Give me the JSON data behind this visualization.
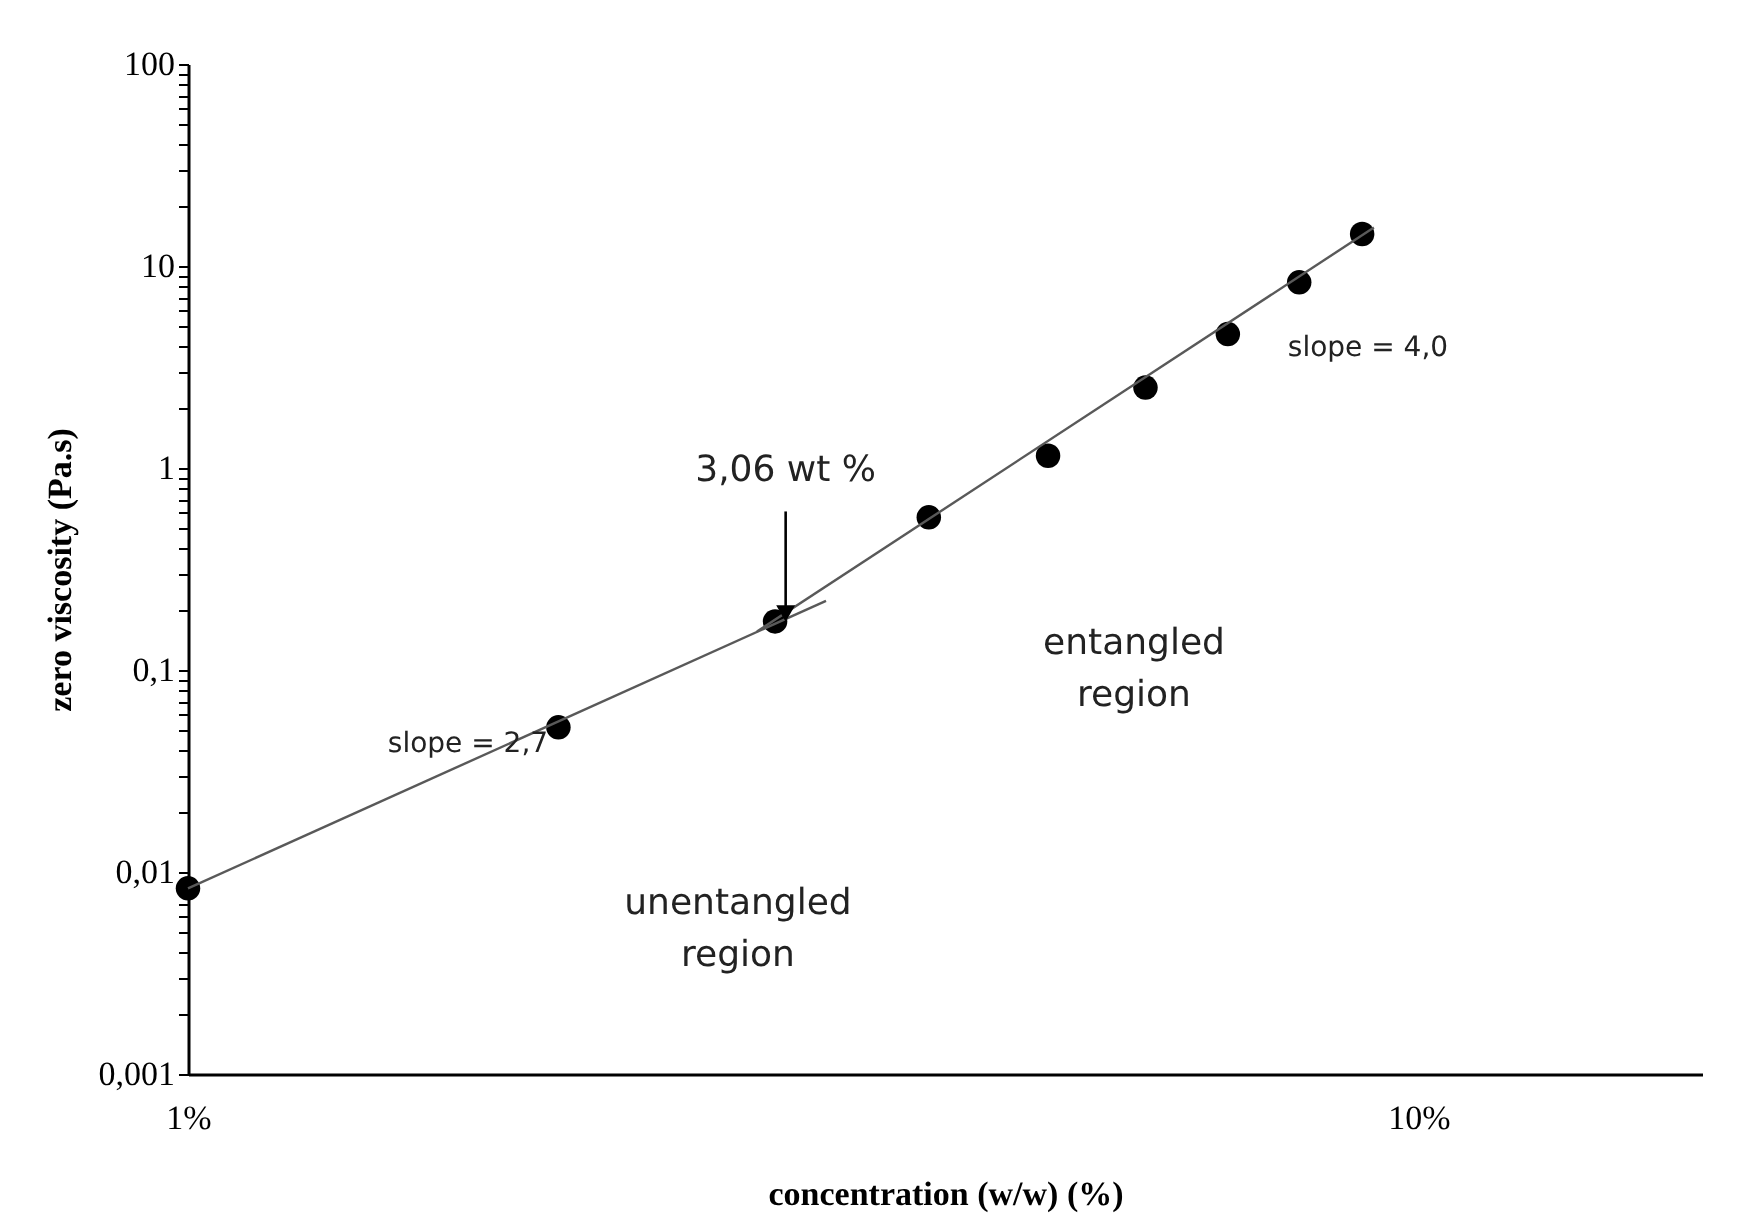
{
  "chart_data": {
    "type": "scatter",
    "xlabel": "concentration (w/w) (%)",
    "ylabel": "zero viscosity (Pa.s)",
    "log": "xy",
    "grid": false,
    "xlim": [
      1,
      17
    ],
    "ylim": [
      0.001,
      100
    ],
    "xticks": [
      {
        "value": 1,
        "label": "1%"
      },
      {
        "value": 10,
        "label": "10%"
      }
    ],
    "yticks": [
      {
        "value": 0.001,
        "label": "0,001"
      },
      {
        "value": 0.002,
        "label": null
      },
      {
        "value": 0.003,
        "label": null
      },
      {
        "value": 0.004,
        "label": null
      },
      {
        "value": 0.005,
        "label": null
      },
      {
        "value": 0.006,
        "label": null
      },
      {
        "value": 0.007,
        "label": null
      },
      {
        "value": 0.008,
        "label": null
      },
      {
        "value": 0.009,
        "label": null
      },
      {
        "value": 0.01,
        "label": "0,01"
      },
      {
        "value": 0.02,
        "label": null
      },
      {
        "value": 0.03,
        "label": null
      },
      {
        "value": 0.04,
        "label": null
      },
      {
        "value": 0.05,
        "label": null
      },
      {
        "value": 0.06,
        "label": null
      },
      {
        "value": 0.07,
        "label": null
      },
      {
        "value": 0.08,
        "label": null
      },
      {
        "value": 0.09,
        "label": null
      },
      {
        "value": 0.1,
        "label": "0,1"
      },
      {
        "value": 0.2,
        "label": null
      },
      {
        "value": 0.3,
        "label": null
      },
      {
        "value": 0.4,
        "label": null
      },
      {
        "value": 0.5,
        "label": null
      },
      {
        "value": 0.6,
        "label": null
      },
      {
        "value": 0.7,
        "label": null
      },
      {
        "value": 0.8,
        "label": null
      },
      {
        "value": 0.9,
        "label": null
      },
      {
        "value": 1,
        "label": "1"
      },
      {
        "value": 2,
        "label": null
      },
      {
        "value": 3,
        "label": null
      },
      {
        "value": 4,
        "label": null
      },
      {
        "value": 5,
        "label": null
      },
      {
        "value": 6,
        "label": null
      },
      {
        "value": 7,
        "label": null
      },
      {
        "value": 8,
        "label": null
      },
      {
        "value": 9,
        "label": null
      },
      {
        "value": 10,
        "label": "10"
      },
      {
        "value": 20,
        "label": null
      },
      {
        "value": 30,
        "label": null
      },
      {
        "value": 40,
        "label": null
      },
      {
        "value": 50,
        "label": null
      },
      {
        "value": 60,
        "label": null
      },
      {
        "value": 70,
        "label": null
      },
      {
        "value": 80,
        "label": null
      },
      {
        "value": 90,
        "label": null
      },
      {
        "value": 100,
        "label": "100"
      }
    ],
    "series": [
      {
        "color": "#000000",
        "marker": "circle",
        "x": [
          1,
          2,
          3,
          4,
          5,
          6,
          7,
          8,
          9
        ],
        "values": [
          0.0083,
          0.052,
          0.174,
          0.57,
          1.15,
          2.5,
          4.6,
          8.3,
          14.4
        ]
      },
      {
        "type": "line",
        "color": "#595959",
        "line_style": "solid",
        "x": [
          1,
          3.3
        ],
        "values": [
          0.0083,
          0.22
        ]
      },
      {
        "type": "line",
        "color": "#595959",
        "line_style": "solid",
        "x": [
          2.9,
          9.2
        ],
        "values": [
          0.155,
          15.5
        ]
      }
    ],
    "annotations": [
      "slope = 2,7",
      "unentangled region",
      {
        "text": "3,06 wt %",
        "x": 3.06,
        "y": 0.17
      },
      "entangled region",
      "slope = 4,0"
    ]
  }
}
